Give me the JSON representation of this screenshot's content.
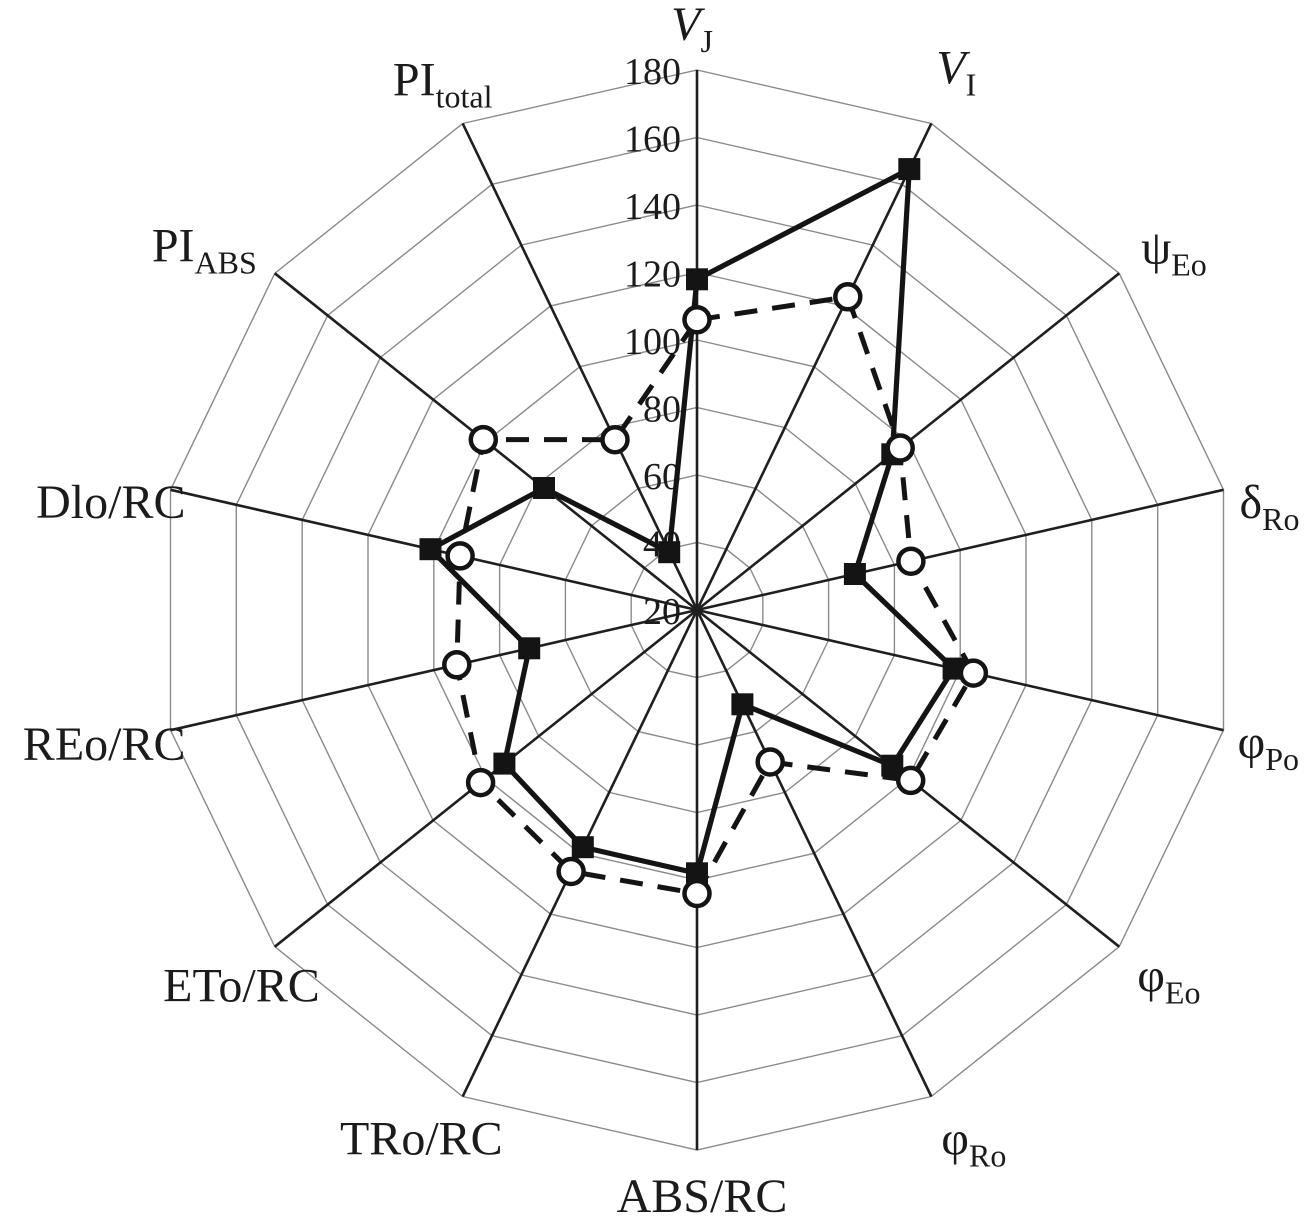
{
  "figure": {
    "kind": "radar-chart",
    "background": "#ffffff"
  },
  "colors": {
    "background": "#ffffff",
    "grid_ring": "#8a8a8a",
    "axis_line": "#1f1f1f",
    "series_solid": "#141414",
    "series_dashed": "#141414",
    "marker_fill_square": "#141414",
    "marker_fill_circle": "#ffffff",
    "text": "#1b1b1b"
  },
  "chart_data": {
    "type": "radar",
    "title": "",
    "legend": false,
    "grid": true,
    "axes_count": 14,
    "start_axis": "top",
    "direction": "clockwise",
    "r_axis": {
      "min": 20,
      "max": 180,
      "ticks": [
        180,
        160,
        140,
        120,
        100,
        80,
        60,
        40,
        20
      ],
      "gridline_step": 20,
      "tick_side": "left-of-top-axis"
    },
    "axes": [
      {
        "slug": "v-j",
        "text": "V",
        "sub": "J",
        "italic": true
      },
      {
        "slug": "v-i",
        "text": "V",
        "sub": "I",
        "italic": true
      },
      {
        "slug": "psi-eo",
        "text": "ψ",
        "sub": "Eo",
        "italic": false
      },
      {
        "slug": "delta-ro",
        "text": "δ",
        "sub": "Ro",
        "italic": false
      },
      {
        "slug": "phi-po",
        "text": "φ",
        "sub": "Po",
        "italic": false
      },
      {
        "slug": "phi-eo",
        "text": "φ",
        "sub": "Eo",
        "italic": false
      },
      {
        "slug": "phi-ro",
        "text": "φ",
        "sub": "Ro",
        "italic": false
      },
      {
        "slug": "abs-rc",
        "text": "ABS/RC",
        "sub": "",
        "italic": false
      },
      {
        "slug": "tro-rc",
        "text": "TRo/RC",
        "sub": "",
        "italic": false
      },
      {
        "slug": "eto-rc",
        "text": "ETo/RC",
        "sub": "",
        "italic": false
      },
      {
        "slug": "reo-rc",
        "text": "REo/RC",
        "sub": "",
        "italic": false
      },
      {
        "slug": "dlo-rc",
        "text": "Dlo/RC",
        "sub": "",
        "italic": false
      },
      {
        "slug": "pi-abs",
        "text": "PI",
        "sub": "ABS",
        "italic": false
      },
      {
        "slug": "pi-total",
        "text": "PI",
        "sub": "total",
        "italic": false
      }
    ],
    "series": [
      {
        "slug": "solid-squares",
        "line": "solid",
        "marker": "filled-square",
        "color": "#141414",
        "values": [
          118,
          165,
          94,
          68,
          98,
          94,
          51,
          98,
          98,
          93,
          71,
          101,
          78,
          39
        ]
      },
      {
        "slug": "dashed-circles",
        "line": "dashed",
        "marker": "open-circle",
        "color": "#141414",
        "values": [
          106,
          123,
          97,
          85,
          104,
          101,
          70,
          104,
          106,
          102,
          93,
          92,
          101,
          76
        ]
      }
    ]
  }
}
